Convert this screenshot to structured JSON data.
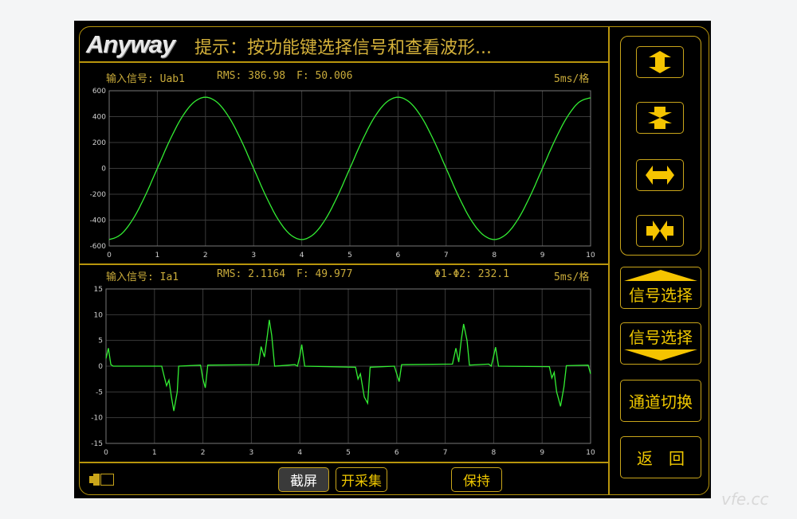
{
  "header": {
    "logo": "Anyway",
    "hint": "提示：按功能键选择信号和查看波形..."
  },
  "channel1": {
    "label": "输入信号: Uab1",
    "rms": "RMS: 386.98",
    "freq": "F: 50.006",
    "timebase": "5ms/格"
  },
  "channel2": {
    "label": "输入信号: Ia1",
    "rms": "RMS: 2.1164",
    "freq": "F: 49.977",
    "phase": "Φ1-Φ2: 232.1",
    "timebase": "5ms/格"
  },
  "bottom_bar": {
    "screenshot": "截屏",
    "start": "开采集",
    "hold": "保持",
    "battery_icon": "battery-icon"
  },
  "side": {
    "zoom_icons": [
      "expand-vertical-icon",
      "compress-vertical-icon",
      "expand-horizontal-icon",
      "compress-horizontal-icon"
    ],
    "signal_up": "信号选择",
    "signal_down": "信号选择",
    "channel_switch": "通道切换",
    "back": "返　回"
  },
  "colors": {
    "trace": "#33ee33",
    "frame": "#b8950c",
    "button_icon": "#f5c400",
    "grid": "#3a3a3a"
  },
  "watermark": "vfe.cc",
  "chart_data": [
    {
      "type": "line",
      "series": [
        {
          "name": "Uab1",
          "x_start": 0,
          "x_step": 0.25,
          "values": [
            -550,
            -508,
            -389,
            -210,
            0,
            210,
            389,
            508,
            550,
            508,
            389,
            210,
            0,
            -210,
            -389,
            -508,
            -550,
            -508,
            -389,
            -210,
            0,
            210,
            389,
            508,
            550,
            508,
            389,
            210,
            0,
            -210,
            -389,
            -508,
            -550,
            -508,
            -389,
            -210,
            0,
            210,
            389,
            508,
            545
          ]
        }
      ],
      "xlim": [
        0,
        10
      ],
      "ylim": [
        -600,
        600
      ],
      "xticks": [
        0,
        1,
        2,
        3,
        4,
        5,
        6,
        7,
        8,
        9,
        10
      ],
      "yticks": [
        600,
        400,
        200,
        0,
        -200,
        -400,
        -600
      ],
      "grid": true
    },
    {
      "type": "line",
      "series": [
        {
          "name": "Ia1",
          "points": [
            [
              0,
              1.5
            ],
            [
              0.05,
              3.5
            ],
            [
              0.1,
              0.3
            ],
            [
              0.15,
              0
            ],
            [
              1.15,
              0
            ],
            [
              1.2,
              -2
            ],
            [
              1.25,
              -3.8
            ],
            [
              1.3,
              -2.7
            ],
            [
              1.35,
              -6
            ],
            [
              1.4,
              -8.7
            ],
            [
              1.47,
              -5
            ],
            [
              1.5,
              0
            ],
            [
              1.95,
              0.2
            ],
            [
              2.0,
              -2.5
            ],
            [
              2.05,
              -4.2
            ],
            [
              2.1,
              0.2
            ],
            [
              3.15,
              0.3
            ],
            [
              3.2,
              3.8
            ],
            [
              3.27,
              1.8
            ],
            [
              3.33,
              6
            ],
            [
              3.37,
              9
            ],
            [
              3.42,
              6
            ],
            [
              3.48,
              0
            ],
            [
              3.9,
              0.3
            ],
            [
              3.95,
              0
            ],
            [
              4.0,
              2
            ],
            [
              4.04,
              4.2
            ],
            [
              4.1,
              0
            ],
            [
              5.15,
              -0.2
            ],
            [
              5.2,
              -2.5
            ],
            [
              5.25,
              -1.5
            ],
            [
              5.33,
              -6
            ],
            [
              5.4,
              -7.2
            ],
            [
              5.45,
              -0.2
            ],
            [
              5.95,
              0
            ],
            [
              6.0,
              -1.5
            ],
            [
              6.05,
              -3
            ],
            [
              6.1,
              0.3
            ],
            [
              7.15,
              0.4
            ],
            [
              7.22,
              3.5
            ],
            [
              7.28,
              0.8
            ],
            [
              7.33,
              5
            ],
            [
              7.38,
              8.2
            ],
            [
              7.45,
              5
            ],
            [
              7.5,
              0.2
            ],
            [
              7.9,
              0.4
            ],
            [
              7.95,
              0
            ],
            [
              8.0,
              2
            ],
            [
              8.04,
              3.7
            ],
            [
              8.1,
              0
            ],
            [
              9.15,
              -0.1
            ],
            [
              9.2,
              -2.3
            ],
            [
              9.25,
              -1.2
            ],
            [
              9.3,
              -5
            ],
            [
              9.38,
              -7.8
            ],
            [
              9.45,
              -4
            ],
            [
              9.5,
              0.1
            ],
            [
              9.95,
              0.2
            ],
            [
              10,
              -1.5
            ]
          ]
        }
      ],
      "xlim": [
        0,
        10
      ],
      "ylim": [
        -15,
        15
      ],
      "xticks": [
        0,
        1,
        2,
        3,
        4,
        5,
        6,
        7,
        8,
        9,
        10
      ],
      "yticks": [
        15,
        10,
        5,
        0,
        -5,
        -10,
        -15
      ],
      "grid": true
    }
  ]
}
